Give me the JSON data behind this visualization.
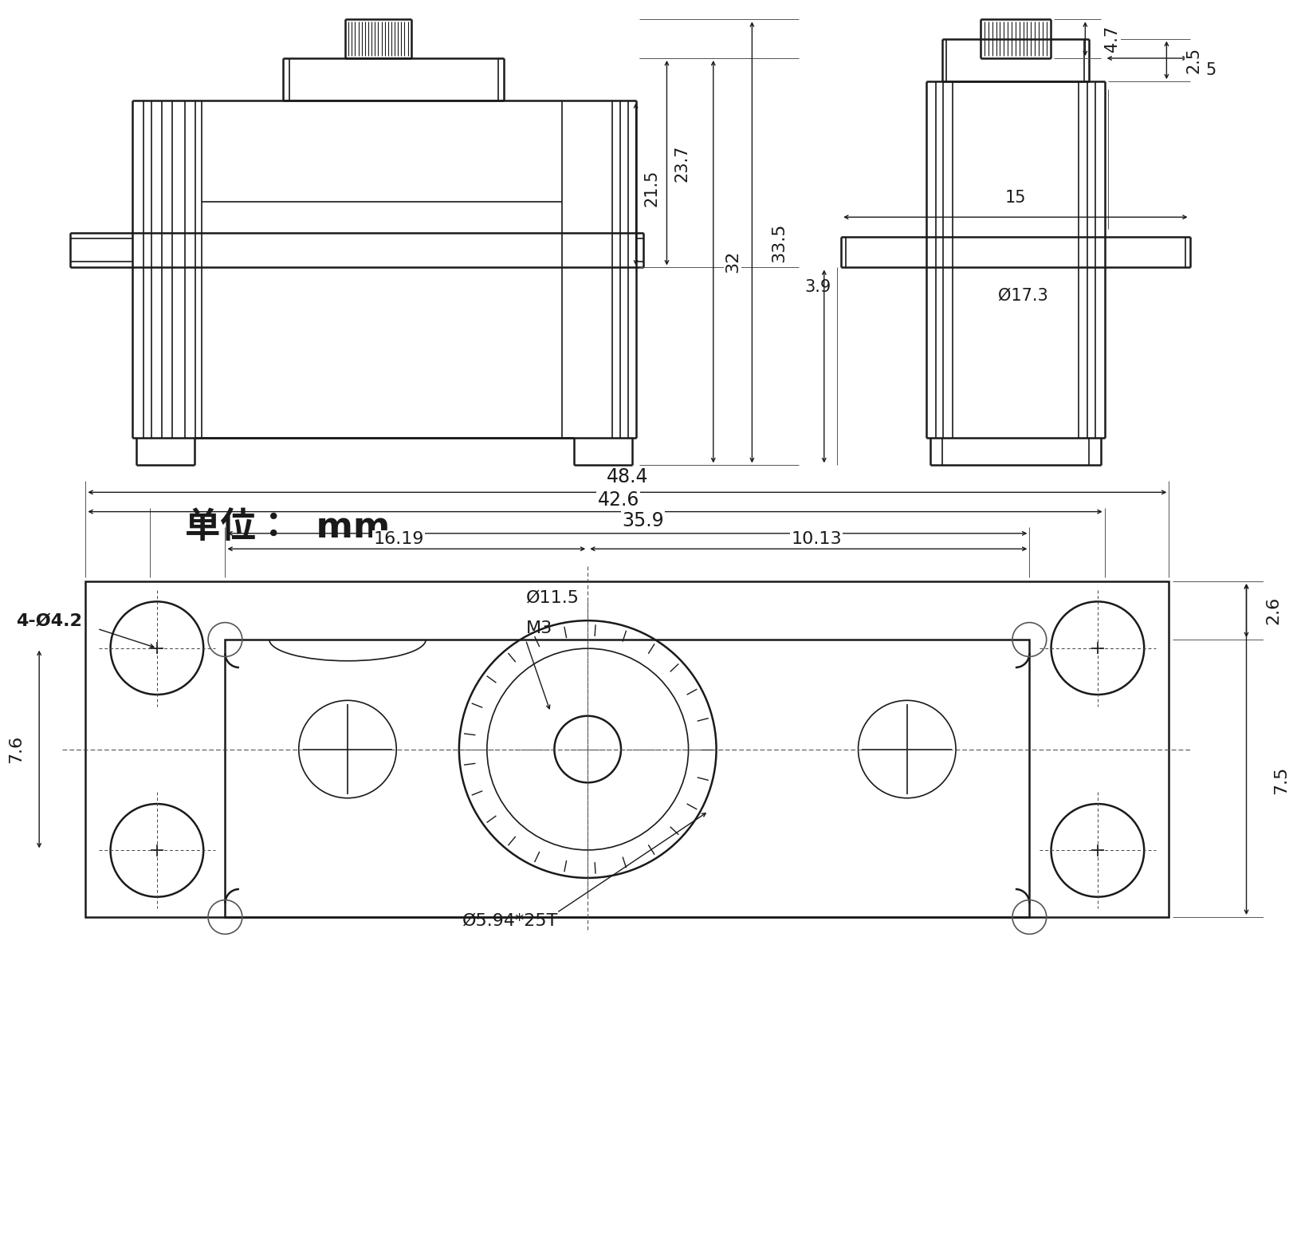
{
  "bg_color": "#ffffff",
  "lc": "#1a1a1a",
  "lw_main": 1.8,
  "lw_med": 1.2,
  "lw_thin": 0.7,
  "unit_label": "单位：  mm",
  "dim_33_5": "33.5",
  "dim_32": "32",
  "dim_23_7": "23.7",
  "dim_21_5": "21.5",
  "dim_4_7": "4.7",
  "dim_2_5": "2.5",
  "dim_5": "5",
  "dim_15": "15",
  "dim_17_3": "Ø17.3",
  "dim_3_9": "3.9",
  "dim_48_4": "48.4",
  "dim_42_6": "42.6",
  "dim_35_9": "35.9",
  "dim_16_19": "16.19",
  "dim_10_13": "10.13",
  "dim_2_6": "2.6",
  "dim_7_5": "7.5",
  "dim_7_6": "7.6",
  "dim_4_holes": "4-Ø4.2",
  "dim_11_5": "Ø11.5",
  "dim_M3": "M3",
  "dim_5_94": "Ø5.94*25T"
}
